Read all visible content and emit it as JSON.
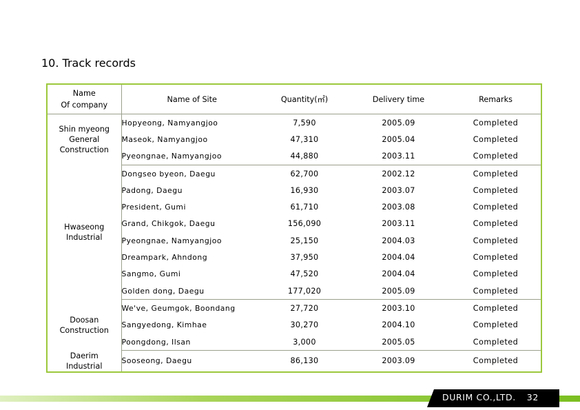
{
  "title": "10. Track records",
  "headers": {
    "company": "Name\nOf company",
    "company_line1": "Name",
    "company_line2": "Of company",
    "site": "Name of Site",
    "quantity": "Quantity(㎡)",
    "delivery": "Delivery time",
    "remarks": "Remarks"
  },
  "groups": [
    {
      "company": "Shin myeong General Construction",
      "rows": [
        {
          "site": "Hopyeong, Namyangjoo",
          "quantity": "7,590",
          "delivery": "2005.09",
          "remarks": "Completed"
        },
        {
          "site": "Maseok, Namyangjoo",
          "quantity": "47,310",
          "delivery": "2005.04",
          "remarks": "Completed"
        },
        {
          "site": "Pyeongnae, Namyangjoo",
          "quantity": "44,880",
          "delivery": "2003.11",
          "remarks": "Completed"
        }
      ]
    },
    {
      "company": "Hwaseong Industrial",
      "rows": [
        {
          "site": "Dongseo byeon, Daegu",
          "quantity": "62,700",
          "delivery": "2002.12",
          "remarks": "Completed"
        },
        {
          "site": "Padong, Daegu",
          "quantity": "16,930",
          "delivery": "2003.07",
          "remarks": "Completed"
        },
        {
          "site": "President, Gumi",
          "quantity": "61,710",
          "delivery": "2003.08",
          "remarks": "Completed"
        },
        {
          "site": "Grand, Chikgok, Daegu",
          "quantity": "156,090",
          "delivery": "2003.11",
          "remarks": "Completed"
        },
        {
          "site": "Pyeongnae, Namyangjoo",
          "quantity": "25,150",
          "delivery": "2004.03",
          "remarks": "Completed"
        },
        {
          "site": "Dreampark, Ahndong",
          "quantity": "37,950",
          "delivery": "2004.04",
          "remarks": "Completed"
        },
        {
          "site": "Sangmo, Gumi",
          "quantity": "47,520",
          "delivery": "2004.04",
          "remarks": "Completed"
        },
        {
          "site": "Golden dong, Daegu",
          "quantity": "177,020",
          "delivery": "2005.09",
          "remarks": "Completed"
        }
      ]
    },
    {
      "company": "Doosan Construction",
      "rows": [
        {
          "site": "We've, Geumgok, Boondang",
          "quantity": "27,720",
          "delivery": "2003.10",
          "remarks": "Completed"
        },
        {
          "site": "Sangyedong, Kimhae",
          "quantity": "30,270",
          "delivery": "2004.10",
          "remarks": "Completed"
        },
        {
          "site": "Poongdong, Ilsan",
          "quantity": "3,000",
          "delivery": "2005.05",
          "remarks": "Completed"
        }
      ]
    },
    {
      "company": "Daerim Industrial",
      "rows": [
        {
          "site": "Sooseong, Daegu",
          "quantity": "86,130",
          "delivery": "2003.09",
          "remarks": "Completed"
        }
      ]
    }
  ],
  "footer": {
    "company": "DURIM CO.,LTD.",
    "page": "32"
  },
  "colors": {
    "table_border": "#9cc83c",
    "footer_bar": "#7bbf21",
    "footer_box": "#000000"
  }
}
